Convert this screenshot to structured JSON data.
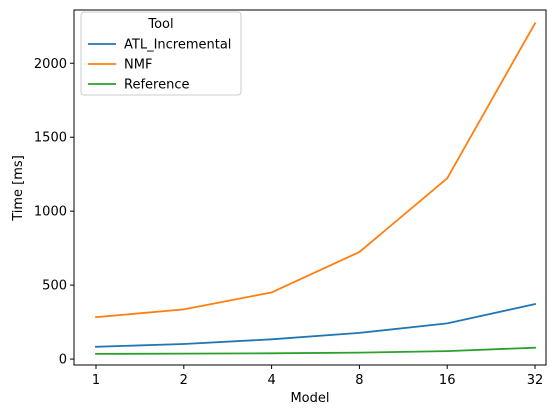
{
  "chart_data": {
    "type": "line",
    "x": [
      "1",
      "2",
      "4",
      "8",
      "16",
      "32"
    ],
    "xlabel": "Model",
    "ylabel": "Time [ms]",
    "ylim": [
      -40,
      2360
    ],
    "yticks": [
      0,
      500,
      1000,
      1500,
      2000
    ],
    "grid": false,
    "legend": {
      "title": "Tool",
      "position": "top-left"
    },
    "series": [
      {
        "name": "ATL_Incremental",
        "color": "#1f77b4",
        "values": [
          83,
          102,
          134,
          177,
          241,
          372
        ]
      },
      {
        "name": "NMF",
        "color": "#ff7f0e",
        "values": [
          283,
          336,
          451,
          724,
          1222,
          2270
        ]
      },
      {
        "name": "Reference",
        "color": "#2ca02c",
        "values": [
          35,
          37,
          39,
          44,
          54,
          77
        ]
      }
    ]
  }
}
